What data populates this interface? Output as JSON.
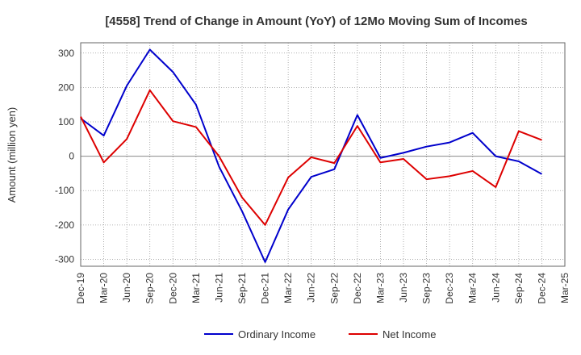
{
  "chart_data": {
    "type": "line",
    "title": "[4558]  Trend of Change in Amount (YoY) of 12Mo Moving Sum of Incomes",
    "xlabel": "",
    "ylabel": "Amount (million yen)",
    "ylim": [
      -320,
      330
    ],
    "yticks": [
      300,
      200,
      100,
      0,
      -100,
      -200,
      -300
    ],
    "grid": true,
    "legend": "bottom-center",
    "categories": [
      "Dec-19",
      "Mar-20",
      "Jun-20",
      "Sep-20",
      "Dec-20",
      "Mar-21",
      "Jun-21",
      "Sep-21",
      "Dec-21",
      "Mar-22",
      "Jun-22",
      "Sep-22",
      "Dec-22",
      "Mar-23",
      "Jun-23",
      "Sep-23",
      "Dec-23",
      "Mar-24",
      "Jun-24",
      "Sep-24",
      "Dec-24",
      "Mar-25"
    ],
    "series": [
      {
        "name": "Ordinary Income",
        "color": "#0000cc",
        "values": [
          110,
          60,
          205,
          310,
          245,
          150,
          -30,
          -160,
          -308,
          -155,
          -60,
          -38,
          120,
          -5,
          10,
          28,
          40,
          68,
          0,
          -15,
          -52,
          null
        ]
      },
      {
        "name": "Net Income",
        "color": "#dd0000",
        "values": [
          115,
          -18,
          50,
          192,
          102,
          85,
          0,
          -120,
          -200,
          -62,
          -3,
          -20,
          88,
          -18,
          -8,
          -67,
          -58,
          -43,
          -90,
          73,
          47,
          null
        ]
      }
    ]
  }
}
